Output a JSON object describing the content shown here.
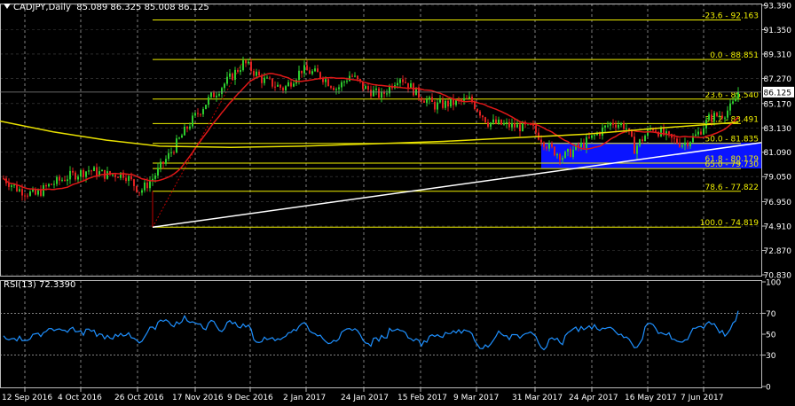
{
  "header": {
    "symbol": "CADJPY,Daily",
    "ohlc": "85.089 86.325 85.008 86.125"
  },
  "rsi_label": "RSI(13) 72.3390",
  "price_axis": [
    "93.390",
    "91.350",
    "89.310",
    "87.270",
    "85.170",
    "83.130",
    "81.090",
    "79.050",
    "76.950",
    "74.910",
    "72.870",
    "70.830"
  ],
  "current_price": "86.125",
  "rsi_axis": [
    "100",
    "70",
    "50",
    "30",
    "0"
  ],
  "date_axis": [
    "12 Sep 2016",
    "4 Oct 2016",
    "26 Oct 2016",
    "17 Nov 2016",
    "9 Dec 2016",
    "2 Jan 2017",
    "24 Jan 2017",
    "15 Feb 2017",
    "9 Mar 2017",
    "31 Mar 2017",
    "24 Apr 2017",
    "16 May 2017",
    "7 Jun 2017"
  ],
  "fib_levels": [
    {
      "label": "-23.6 - 92.163",
      "value": 92.163
    },
    {
      "label": "0.0 - 88.851",
      "value": 88.851
    },
    {
      "label": "23.6 - 85.540",
      "value": 85.54
    },
    {
      "label": "38.2 - 83.491",
      "value": 83.491
    },
    {
      "label": "50.0 - 81.835",
      "value": 81.835
    },
    {
      "label": "61.8 - 80.179",
      "value": 80.179
    },
    {
      "label": "65.0 - 79.730",
      "value": 79.73
    },
    {
      "label": "78.6 - 77.822",
      "value": 77.822
    },
    {
      "label": "100.0 - 74.819",
      "value": 74.819
    }
  ],
  "colors": {
    "background": "#000000",
    "grid": "#c8c8c8",
    "bull": "#2ecc2e",
    "bear": "#e02020",
    "ma_red": "#e01818",
    "ma_yellow": "#e8e000",
    "fib": "#f0f000",
    "trend": "#ffffff",
    "zone": "#0a14ff",
    "rsi": "#1e90ff"
  }
}
